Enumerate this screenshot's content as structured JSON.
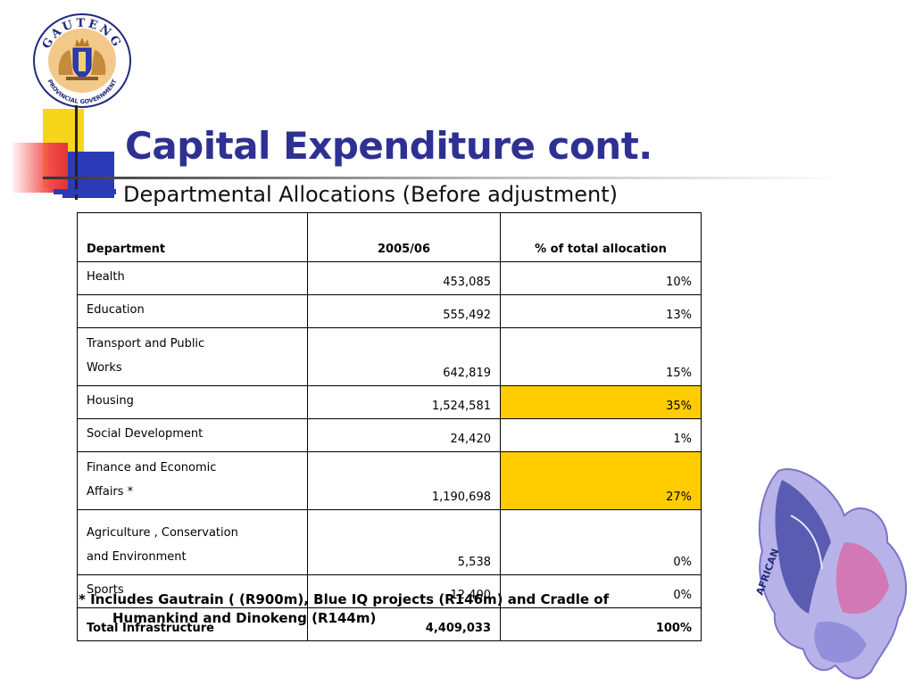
{
  "logo": {
    "text_top": "GAUTENG",
    "text_bottom": "PROVINCIAL GOVERNMENT",
    "colors": {
      "ring": "#f3c98a",
      "border": "#1f2a7a",
      "shield": "#2b3bb8"
    }
  },
  "title": "Capital Expenditure cont.",
  "subtitle": "Departmental Allocations (Before adjustment)",
  "table": {
    "headers": {
      "department": "Department",
      "year": "2005/06",
      "percent": "% of total allocation"
    },
    "rows": [
      {
        "department": [
          "Health"
        ],
        "amount": "453,085",
        "percent": "10%",
        "highlight": false
      },
      {
        "department": [
          "Education"
        ],
        "amount": "555,492",
        "percent": "13%",
        "highlight": false
      },
      {
        "department": [
          "Transport and Public",
          "Works"
        ],
        "amount": "642,819",
        "percent": "15%",
        "highlight": false
      },
      {
        "department": [
          "Housing"
        ],
        "amount": "1,524,581",
        "percent": "35%",
        "highlight": true
      },
      {
        "department": [
          "Social Development"
        ],
        "amount": "24,420",
        "percent": "1%",
        "highlight": false
      },
      {
        "department": [
          "Finance and Economic",
          "Affairs *"
        ],
        "amount": "1,190,698",
        "percent": "27%",
        "highlight": true
      },
      {
        "department": [
          "Agriculture , Conservation",
          "and Environment"
        ],
        "amount": "5,538",
        "percent": "0%",
        "highlight": false
      },
      {
        "department": [
          "Sports"
        ],
        "amount": "12,400",
        "percent": "0%",
        "highlight": false
      }
    ],
    "total": {
      "department": "Total Infrastructure",
      "amount": "4,409,033",
      "percent": "100%"
    },
    "highlight_color": "#ffcc00"
  },
  "footnote": "* Includes Gautrain ( (R900m), Blue IQ projects (R146m) and Cradle of Humankind and Dinokeng (R144m)",
  "butterfly": {
    "wing_text": "AFRICAN"
  },
  "accent_colors": {
    "title": "#2e3192",
    "deco_yellow": "#f7d51b",
    "deco_blue": "#2b3bb8",
    "deco_red": "#f24848"
  }
}
